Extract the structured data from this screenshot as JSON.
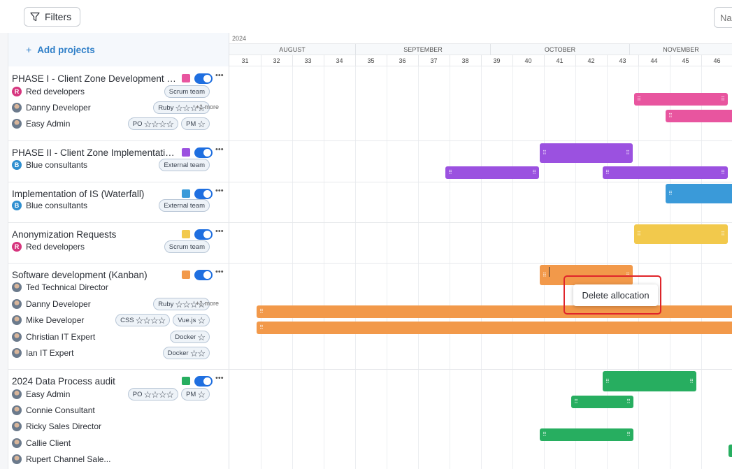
{
  "toolbar": {
    "filters_label": "Filters",
    "name_placeholder": "Na"
  },
  "sidebar": {
    "add_projects_label": "Add projects"
  },
  "timeline": {
    "year": "2024",
    "months": [
      "AUGUST",
      "SEPTEMBER",
      "OCTOBER",
      "NOVEMBER"
    ],
    "weeks": [
      "31",
      "32",
      "33",
      "34",
      "35",
      "36",
      "37",
      "38",
      "39",
      "40",
      "41",
      "42",
      "43",
      "44",
      "45",
      "46"
    ]
  },
  "projects": [
    {
      "title": "PHASE I - Client Zone Development (S...",
      "color": "#e8559f",
      "members": [
        {
          "name": "Red developers",
          "avatar": "R",
          "avatar_color": "#d6357e",
          "tags": [
            {
              "label": "Scrum team",
              "stars": ""
            }
          ],
          "more": ""
        },
        {
          "name": "Danny Developer",
          "avatar": "",
          "avatar_color": "",
          "tags": [
            {
              "label": "Ruby",
              "stars": "☆☆☆☆"
            }
          ],
          "more": "+1 more"
        },
        {
          "name": "Easy Admin",
          "avatar": "",
          "avatar_color": "",
          "tags": [
            {
              "label": "PO",
              "stars": "☆☆☆☆"
            },
            {
              "label": "PM",
              "stars": "☆"
            }
          ],
          "more": ""
        }
      ]
    },
    {
      "title": "PHASE II - Client Zone Implementatio...",
      "color": "#9b51e0",
      "members": [
        {
          "name": "Blue consultants",
          "avatar": "B",
          "avatar_color": "#2f8fd0",
          "tags": [
            {
              "label": "External team",
              "stars": ""
            }
          ],
          "more": ""
        }
      ]
    },
    {
      "title": "Implementation of IS (Waterfall)",
      "color": "#3a9ad9",
      "members": [
        {
          "name": "Blue consultants",
          "avatar": "B",
          "avatar_color": "#2f8fd0",
          "tags": [
            {
              "label": "External team",
              "stars": ""
            }
          ],
          "more": ""
        }
      ]
    },
    {
      "title": "Anonymization Requests",
      "color": "#f2c94c",
      "members": [
        {
          "name": "Red developers",
          "avatar": "R",
          "avatar_color": "#d6357e",
          "tags": [
            {
              "label": "Scrum team",
              "stars": ""
            }
          ],
          "more": ""
        }
      ]
    },
    {
      "title": "Software development (Kanban)",
      "color": "#f2994a",
      "members": [
        {
          "name": "Ted Technical Director",
          "avatar": "",
          "avatar_color": "",
          "tags": [],
          "more": ""
        },
        {
          "name": "Danny Developer",
          "avatar": "",
          "avatar_color": "",
          "tags": [
            {
              "label": "Ruby",
              "stars": "☆☆☆☆"
            }
          ],
          "more": "+1 more"
        },
        {
          "name": "Mike Developer",
          "avatar": "",
          "avatar_color": "",
          "tags": [
            {
              "label": "CSS",
              "stars": "☆☆☆☆"
            },
            {
              "label": "Vue.js",
              "stars": "☆"
            }
          ],
          "more": ""
        },
        {
          "name": "Christian IT Expert",
          "avatar": "",
          "avatar_color": "",
          "tags": [
            {
              "label": "Docker",
              "stars": "☆"
            }
          ],
          "more": ""
        },
        {
          "name": "Ian IT Expert",
          "avatar": "",
          "avatar_color": "",
          "tags": [
            {
              "label": "Docker",
              "stars": "☆☆"
            }
          ],
          "more": ""
        }
      ]
    },
    {
      "title": "2024 Data Process audit",
      "color": "#27ae60",
      "members": [
        {
          "name": "Easy Admin",
          "avatar": "",
          "avatar_color": "",
          "tags": [
            {
              "label": "PO",
              "stars": "☆☆☆☆"
            },
            {
              "label": "PM",
              "stars": "☆"
            }
          ],
          "more": ""
        },
        {
          "name": "Connie Consultant",
          "avatar": "",
          "avatar_color": "",
          "tags": [],
          "more": ""
        },
        {
          "name": "Ricky Sales Director",
          "avatar": "",
          "avatar_color": "",
          "tags": [],
          "more": ""
        },
        {
          "name": "Callie Client",
          "avatar": "",
          "avatar_color": "",
          "tags": [],
          "more": ""
        },
        {
          "name": "Rupert Channel Sale...",
          "avatar": "",
          "avatar_color": "",
          "tags": [],
          "more": ""
        }
      ]
    }
  ],
  "context_menu": {
    "delete_label": "Delete allocation"
  },
  "icons": {
    "filter": "filter-icon",
    "more": "more-horizontal-icon",
    "drag_handle": "drag-handle-icon"
  }
}
